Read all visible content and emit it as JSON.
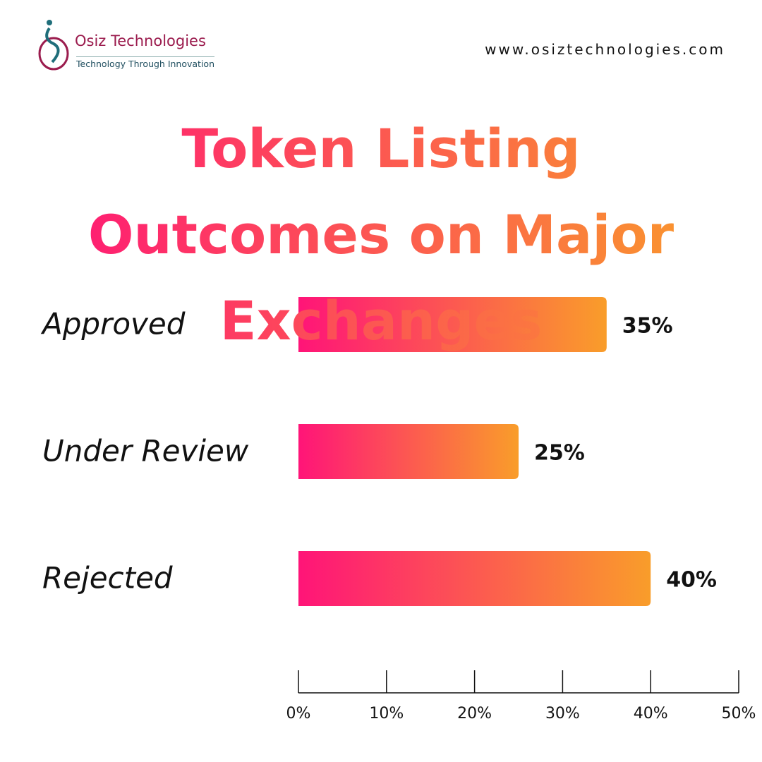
{
  "header": {
    "brand": "Osiz Technologies",
    "tagline": "Technology Through Innovation",
    "website": "www.osiztechnologies.com"
  },
  "chart_data": {
    "type": "bar",
    "orientation": "horizontal",
    "title": "Token Listing Outcomes on Major Exchanges",
    "categories": [
      "Approved",
      "Under Review",
      "Rejected"
    ],
    "values": [
      35,
      25,
      40
    ],
    "value_labels": [
      "35%",
      "25%",
      "40%"
    ],
    "gradient": [
      "#ff1478",
      "#f99d2a"
    ],
    "xlim": [
      0,
      50
    ],
    "xticks": [
      {
        "value": 0,
        "label": "0%"
      },
      {
        "value": 10,
        "label": "10%"
      },
      {
        "value": 20,
        "label": "20%"
      },
      {
        "value": 30,
        "label": "30%"
      },
      {
        "value": 40,
        "label": "40%"
      },
      {
        "value": 50,
        "label": "50%"
      }
    ]
  }
}
